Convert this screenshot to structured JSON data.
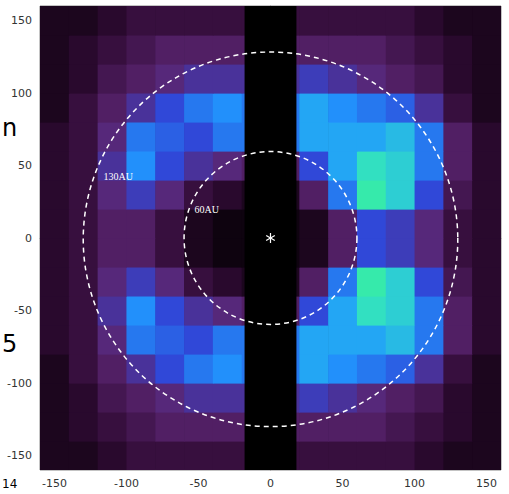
{
  "chart_data": {
    "type": "heatmap",
    "x": [
      -150,
      -130,
      -110,
      -90,
      -70,
      -50,
      -30,
      -10,
      10,
      30,
      50,
      70,
      90,
      110,
      130,
      150
    ],
    "y": [
      -150,
      -130,
      -110,
      -90,
      -70,
      -50,
      -30,
      -10,
      10,
      30,
      50,
      70,
      90,
      110,
      130,
      150
    ],
    "z": [
      [
        0.1,
        0.1,
        0.15,
        0.2,
        0.2,
        0.2,
        0.2,
        0.2,
        0.2,
        0.2,
        0.2,
        0.2,
        0.2,
        0.15,
        0.1,
        0.1
      ],
      [
        0.1,
        0.15,
        0.2,
        0.25,
        0.3,
        0.3,
        0.3,
        0.3,
        0.3,
        0.3,
        0.3,
        0.3,
        0.25,
        0.2,
        0.15,
        0.1
      ],
      [
        0.1,
        0.15,
        0.25,
        0.3,
        0.35,
        0.4,
        0.4,
        0.4,
        0.4,
        0.45,
        0.4,
        0.35,
        0.3,
        0.25,
        0.15,
        0.1
      ],
      [
        0.1,
        0.2,
        0.3,
        0.4,
        0.5,
        0.6,
        0.65,
        0.6,
        0.6,
        0.7,
        0.65,
        0.6,
        0.55,
        0.4,
        0.2,
        0.1
      ],
      [
        0.15,
        0.2,
        0.35,
        0.6,
        0.55,
        0.5,
        0.6,
        0.6,
        0.6,
        0.7,
        0.7,
        0.7,
        0.75,
        0.6,
        0.3,
        0.15
      ],
      [
        0.15,
        0.2,
        0.4,
        0.65,
        0.5,
        0.4,
        0.35,
        0.3,
        0.3,
        0.5,
        0.7,
        0.85,
        0.8,
        0.6,
        0.3,
        0.15
      ],
      [
        0.15,
        0.2,
        0.35,
        0.45,
        0.35,
        0.2,
        0.15,
        0.1,
        0.1,
        0.3,
        0.6,
        0.9,
        0.8,
        0.5,
        0.25,
        0.15
      ],
      [
        0.15,
        0.2,
        0.3,
        0.3,
        0.2,
        0.1,
        0.05,
        0.05,
        0.05,
        0.1,
        0.3,
        0.5,
        0.45,
        0.35,
        0.2,
        0.15
      ],
      [
        0.15,
        0.2,
        0.3,
        0.3,
        0.2,
        0.1,
        0.05,
        0.05,
        0.05,
        0.1,
        0.3,
        0.5,
        0.45,
        0.35,
        0.2,
        0.15
      ],
      [
        0.15,
        0.2,
        0.35,
        0.45,
        0.35,
        0.2,
        0.15,
        0.1,
        0.1,
        0.3,
        0.6,
        0.9,
        0.8,
        0.5,
        0.25,
        0.15
      ],
      [
        0.15,
        0.2,
        0.4,
        0.65,
        0.5,
        0.4,
        0.35,
        0.3,
        0.3,
        0.5,
        0.7,
        0.85,
        0.8,
        0.6,
        0.3,
        0.15
      ],
      [
        0.15,
        0.2,
        0.35,
        0.6,
        0.55,
        0.5,
        0.6,
        0.6,
        0.6,
        0.7,
        0.7,
        0.7,
        0.75,
        0.6,
        0.3,
        0.15
      ],
      [
        0.1,
        0.2,
        0.3,
        0.4,
        0.5,
        0.6,
        0.65,
        0.6,
        0.6,
        0.7,
        0.65,
        0.6,
        0.55,
        0.4,
        0.2,
        0.1
      ],
      [
        0.1,
        0.15,
        0.25,
        0.3,
        0.35,
        0.4,
        0.4,
        0.4,
        0.4,
        0.45,
        0.4,
        0.35,
        0.3,
        0.25,
        0.15,
        0.1
      ],
      [
        0.1,
        0.15,
        0.2,
        0.25,
        0.3,
        0.3,
        0.3,
        0.3,
        0.3,
        0.3,
        0.3,
        0.3,
        0.25,
        0.2,
        0.15,
        0.1
      ],
      [
        0.1,
        0.1,
        0.15,
        0.2,
        0.2,
        0.2,
        0.2,
        0.2,
        0.2,
        0.2,
        0.2,
        0.2,
        0.2,
        0.15,
        0.1,
        0.1
      ]
    ],
    "zlim": [
      0,
      1
    ],
    "xlim": [
      -160,
      160
    ],
    "ylim": [
      -160,
      160
    ],
    "xticks": [
      -150,
      -100,
      -50,
      0,
      50,
      100,
      150
    ],
    "yticks": [
      -150,
      -100,
      -50,
      0,
      50,
      100,
      150
    ],
    "grid": false,
    "mask_x": [
      -18,
      18
    ],
    "circles": [
      {
        "radius": 60,
        "label": "60AU"
      },
      {
        "radius": 130,
        "label": "130AU"
      }
    ],
    "star": [
      0,
      0
    ],
    "annotations": [
      "n",
      "5",
      "14"
    ]
  }
}
